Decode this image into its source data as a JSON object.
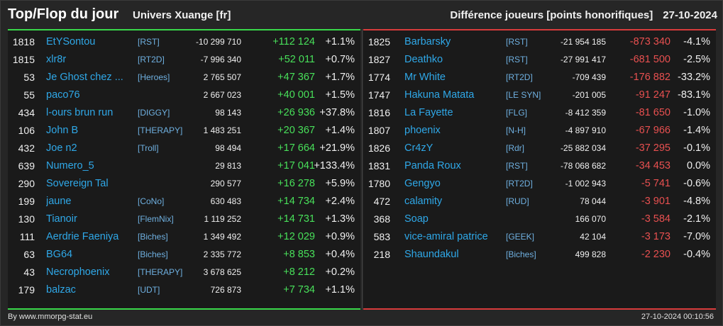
{
  "header": {
    "title": "Top/Flop du jour",
    "universe": "Univers Xuange [fr]",
    "metric": "Différence joueurs [points honorifiques]",
    "date": "27-10-2024"
  },
  "top": [
    {
      "rank": "1818",
      "name": "EtYSontou",
      "guild": "[RST]",
      "total": "-10 299 710",
      "delta": "+112 124",
      "pct": "+1.1%"
    },
    {
      "rank": "1815",
      "name": "xlr8r",
      "guild": "[RT2D]",
      "total": "-7 996 340",
      "delta": "+52 011",
      "pct": "+0.7%"
    },
    {
      "rank": "53",
      "name": "Je Ghost chez ...",
      "guild": "[Heroes]",
      "total": "2 765 507",
      "delta": "+47 367",
      "pct": "+1.7%"
    },
    {
      "rank": "55",
      "name": "paco76",
      "guild": "",
      "total": "2 667 023",
      "delta": "+40 001",
      "pct": "+1.5%"
    },
    {
      "rank": "434",
      "name": "l-ours brun run",
      "guild": "[DIGGY]",
      "total": "98 143",
      "delta": "+26 936",
      "pct": "+37.8%"
    },
    {
      "rank": "106",
      "name": "John B",
      "guild": "[THERAPY]",
      "total": "1 483 251",
      "delta": "+20 367",
      "pct": "+1.4%"
    },
    {
      "rank": "432",
      "name": "Joe n2",
      "guild": "[Troll]",
      "total": "98 494",
      "delta": "+17 664",
      "pct": "+21.9%"
    },
    {
      "rank": "639",
      "name": "Numero_5",
      "guild": "",
      "total": "29 813",
      "delta": "+17 041",
      "pct": "+133.4%"
    },
    {
      "rank": "290",
      "name": "Sovereign Tal",
      "guild": "",
      "total": "290 577",
      "delta": "+16 278",
      "pct": "+5.9%"
    },
    {
      "rank": "199",
      "name": "jaune",
      "guild": "[CoNo]",
      "total": "630 483",
      "delta": "+14 734",
      "pct": "+2.4%"
    },
    {
      "rank": "130",
      "name": "Tianoir",
      "guild": "[FlemNix]",
      "total": "1 119 252",
      "delta": "+14 731",
      "pct": "+1.3%"
    },
    {
      "rank": "111",
      "name": "Aerdrie Faeniya",
      "guild": "[Biches]",
      "total": "1 349 492",
      "delta": "+12 029",
      "pct": "+0.9%"
    },
    {
      "rank": "63",
      "name": "BG64",
      "guild": "[Biches]",
      "total": "2 335 772",
      "delta": "+8 853",
      "pct": "+0.4%"
    },
    {
      "rank": "43",
      "name": "Necrophoenix",
      "guild": "[THERAPY]",
      "total": "3 678 625",
      "delta": "+8 212",
      "pct": "+0.2%"
    },
    {
      "rank": "179",
      "name": "balzac",
      "guild": "[UDT]",
      "total": "726 873",
      "delta": "+7 734",
      "pct": "+1.1%"
    }
  ],
  "flop": [
    {
      "rank": "1825",
      "name": "Barbarsky",
      "guild": "[RST]",
      "total": "-21 954 185",
      "delta": "-873 340",
      "pct": "-4.1%"
    },
    {
      "rank": "1827",
      "name": "Deathko",
      "guild": "[RST]",
      "total": "-27 991 417",
      "delta": "-681 500",
      "pct": "-2.5%"
    },
    {
      "rank": "1774",
      "name": "Mr White",
      "guild": "[RT2D]",
      "total": "-709 439",
      "delta": "-176 882",
      "pct": "-33.2%"
    },
    {
      "rank": "1747",
      "name": "Hakuna Matata",
      "guild": "[LE SYN]",
      "total": "-201 005",
      "delta": "-91 247",
      "pct": "-83.1%"
    },
    {
      "rank": "1816",
      "name": "La Fayette",
      "guild": "[FLG]",
      "total": "-8 412 359",
      "delta": "-81 650",
      "pct": "-1.0%"
    },
    {
      "rank": "1807",
      "name": "phoenix",
      "guild": "[N-H]",
      "total": "-4 897 910",
      "delta": "-67 966",
      "pct": "-1.4%"
    },
    {
      "rank": "1826",
      "name": "Cr4zY",
      "guild": "[Rdr]",
      "total": "-25 882 034",
      "delta": "-37 295",
      "pct": "-0.1%"
    },
    {
      "rank": "1831",
      "name": "Panda Roux",
      "guild": "[RST]",
      "total": "-78 068 682",
      "delta": "-34 453",
      "pct": "0.0%"
    },
    {
      "rank": "1780",
      "name": "Gengyo",
      "guild": "[RT2D]",
      "total": "-1 002 943",
      "delta": "-5 741",
      "pct": "-0.6%"
    },
    {
      "rank": "472",
      "name": "calamity",
      "guild": "[RUD]",
      "total": "78 044",
      "delta": "-3 901",
      "pct": "-4.8%"
    },
    {
      "rank": "368",
      "name": "Soap",
      "guild": "",
      "total": "166 070",
      "delta": "-3 584",
      "pct": "-2.1%"
    },
    {
      "rank": "583",
      "name": "vice-amiral patrice",
      "guild": "[GEEK]",
      "total": "42 104",
      "delta": "-3 173",
      "pct": "-7.0%"
    },
    {
      "rank": "218",
      "name": "Shaundakul",
      "guild": "[Biches]",
      "total": "499 828",
      "delta": "-2 230",
      "pct": "-0.4%"
    }
  ],
  "footer": {
    "credit": "By www.mmorpg-stat.eu",
    "timestamp": "27-10-2024 00:10:56"
  },
  "colors": {
    "top_accent": "#39d84a",
    "flop_accent": "#d83c3c",
    "name_link": "#2fa8e8"
  }
}
